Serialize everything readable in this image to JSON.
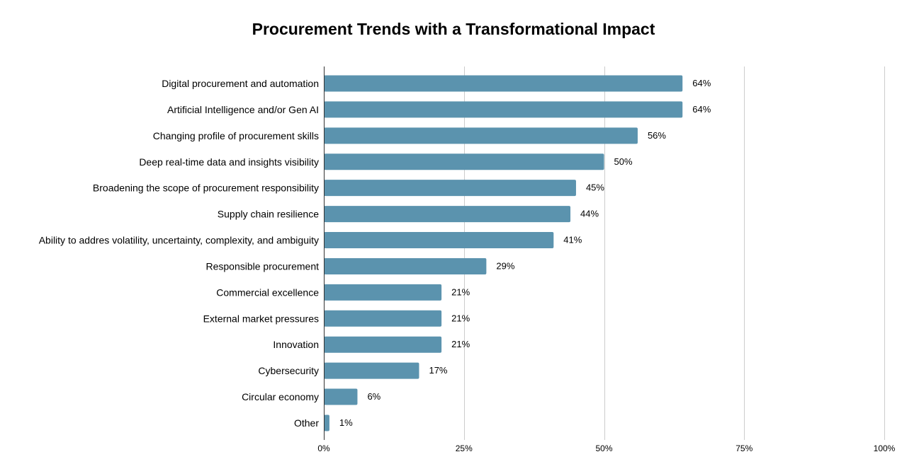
{
  "chart_data": {
    "type": "bar",
    "orientation": "horizontal",
    "title": "Procurement Trends with a Transformational Impact",
    "categories": [
      "Digital procurement and automation",
      "Artificial Intelligence and/or Gen AI",
      "Changing profile of procurement skills",
      "Deep real-time data and insights visibility",
      "Broadening the scope of procurement responsibility",
      "Supply chain resilience",
      "Ability to addres volatility, uncertainty, complexity, and ambiguity",
      "Responsible procurement",
      "Commercial excellence",
      "External market pressures",
      "Innovation",
      "Cybersecurity",
      "Circular economy",
      "Other"
    ],
    "values": [
      64,
      64,
      56,
      50,
      45,
      44,
      41,
      29,
      21,
      21,
      21,
      17,
      6,
      1
    ],
    "value_labels": [
      "64%",
      "64%",
      "56%",
      "50%",
      "45%",
      "44%",
      "41%",
      "29%",
      "21%",
      "21%",
      "21%",
      "17%",
      "6%",
      "1%"
    ],
    "xlim": [
      0,
      100
    ],
    "xticks": [
      0,
      25,
      50,
      75,
      100
    ],
    "xtick_labels": [
      "0%",
      "25%",
      "50%",
      "75%",
      "100%"
    ],
    "xlabel": "",
    "ylabel": "",
    "grid": "vertical",
    "legend": "none",
    "bar_color": "#5b93ae",
    "grid_color": "#cccccc"
  }
}
